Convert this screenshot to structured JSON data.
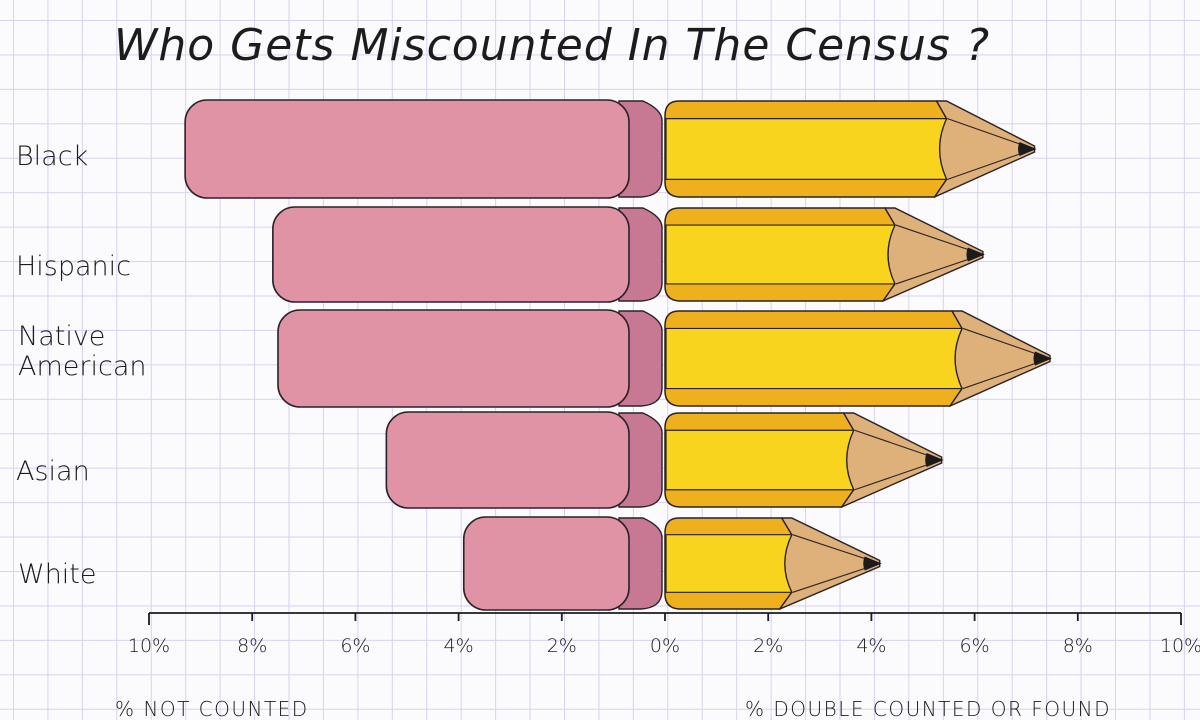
{
  "chart_data": {
    "type": "bar",
    "subtype": "diverging-horizontal",
    "title": "Who Gets Miscounted In The Census ?",
    "categories": [
      "Black",
      "Hispanic",
      "Native American",
      "Asian",
      "White"
    ],
    "series": [
      {
        "name": "% NOT COUNTED",
        "side": "left",
        "style": "eraser",
        "values": [
          9.3,
          7.6,
          7.5,
          5.4,
          3.9
        ]
      },
      {
        "name": "% DOUBLE COUNTED OR FOUND",
        "side": "right",
        "style": "pencil",
        "values": [
          7.2,
          6.2,
          7.5,
          5.4,
          4.2
        ]
      }
    ],
    "xlim_left": [
      10,
      0
    ],
    "xlim_right": [
      0,
      10
    ],
    "left_ticks": [
      "10%",
      "8%",
      "6%",
      "4%",
      "2%"
    ],
    "right_ticks": [
      "0%",
      "2%",
      "4%",
      "6%",
      "8%",
      "10%"
    ],
    "tick_values_left": [
      10,
      8,
      6,
      4,
      2
    ],
    "tick_values_right": [
      0,
      2,
      4,
      6,
      8,
      10
    ],
    "xlabel_left": "% NOT COUNTED",
    "xlabel_right": "% DOUBLE COUNTED OR FOUND",
    "grid": true,
    "legend": "none"
  },
  "colors": {
    "eraser_body": "#e093a5",
    "eraser_shade": "#c77893",
    "pencil_body": "#f9d41f",
    "pencil_band": "#eeb11d",
    "pencil_wood": "#deb07a",
    "pencil_lead": "#1b1b1b",
    "outline": "#2a2226",
    "grid": "#d6d3ef"
  }
}
